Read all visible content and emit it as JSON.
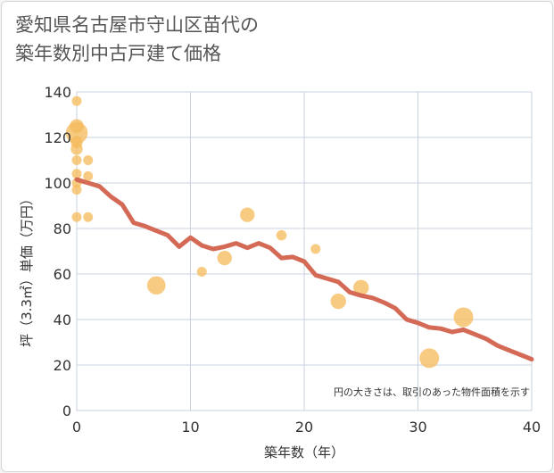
{
  "title_lines": [
    "愛知県名古屋市守山区苗代の",
    "築年数別中古戸建て価格"
  ],
  "colors": {
    "bubble": "#f5b95a",
    "line": "#d46a56",
    "grid": "#c9d3e0",
    "background": "#ffffff"
  },
  "chart_data": {
    "type": "scatter",
    "title": "愛知県名古屋市守山区苗代の築年数別中古戸建て価格",
    "xlabel": "築年数（年）",
    "ylabel": "坪（3.3㎡）単価（万円）",
    "xlim": [
      0,
      40
    ],
    "ylim": [
      0,
      140
    ],
    "xticks": [
      0,
      10,
      20,
      30,
      40
    ],
    "yticks": [
      0,
      20,
      40,
      60,
      80,
      100,
      120,
      140
    ],
    "grid": true,
    "note": "円の大きさは、取引のあった物件面積を示す",
    "scatter_points": [
      {
        "x": 0,
        "y": 136,
        "size": 1
      },
      {
        "x": 0,
        "y": 122,
        "size": 5
      },
      {
        "x": 0,
        "y": 125,
        "size": 2
      },
      {
        "x": 0,
        "y": 118,
        "size": 1.5
      },
      {
        "x": 0,
        "y": 115,
        "size": 1.5
      },
      {
        "x": 0,
        "y": 110,
        "size": 1
      },
      {
        "x": 0,
        "y": 104,
        "size": 1
      },
      {
        "x": 0,
        "y": 100,
        "size": 1
      },
      {
        "x": 0,
        "y": 97,
        "size": 1
      },
      {
        "x": 0,
        "y": 85,
        "size": 1
      },
      {
        "x": 1,
        "y": 110,
        "size": 1
      },
      {
        "x": 1,
        "y": 103,
        "size": 1
      },
      {
        "x": 1,
        "y": 85,
        "size": 1
      },
      {
        "x": 7,
        "y": 55,
        "size": 3.5
      },
      {
        "x": 11,
        "y": 61,
        "size": 1
      },
      {
        "x": 13,
        "y": 67,
        "size": 2.2
      },
      {
        "x": 15,
        "y": 86,
        "size": 2.2
      },
      {
        "x": 18,
        "y": 77,
        "size": 1.1
      },
      {
        "x": 21,
        "y": 71,
        "size": 1
      },
      {
        "x": 23,
        "y": 48,
        "size": 2.5
      },
      {
        "x": 25,
        "y": 54,
        "size": 2.5
      },
      {
        "x": 31,
        "y": 23,
        "size": 4
      },
      {
        "x": 34,
        "y": 41,
        "size": 4
      }
    ],
    "trend_line": {
      "x": [
        0,
        1,
        2,
        3,
        4,
        5,
        6,
        7,
        8,
        9,
        10,
        11,
        12,
        13,
        14,
        15,
        16,
        17,
        18,
        19,
        20,
        21,
        22,
        23,
        24,
        25,
        26,
        27,
        28,
        29,
        30,
        31,
        32,
        33,
        34,
        35,
        36,
        37,
        38,
        39,
        40
      ],
      "y": [
        101.5,
        100,
        98.5,
        94,
        90.5,
        82.5,
        81,
        79,
        77,
        72,
        76,
        72.5,
        71,
        72,
        73.5,
        71.5,
        73.5,
        71.5,
        67,
        67.5,
        65.5,
        59.5,
        58,
        56.5,
        52,
        50.5,
        49.5,
        47.5,
        45,
        40,
        38.5,
        36.5,
        36,
        34.5,
        35.5,
        33.5,
        31.5,
        28.5,
        26.5,
        24.5,
        22.5
      ]
    }
  }
}
